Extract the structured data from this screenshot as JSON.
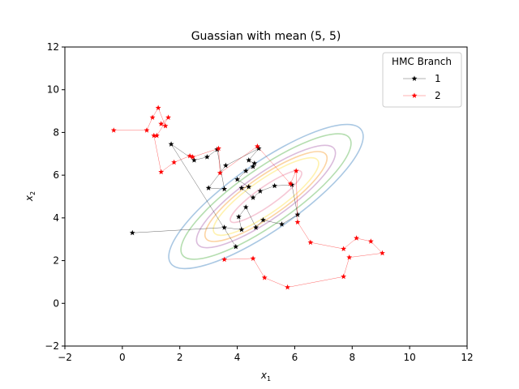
{
  "chart_data": {
    "type": "scatter",
    "title": "Guassian with mean (5, 5)",
    "xlabel_main": "x",
    "xlabel_sub": "1",
    "ylabel_main": "x",
    "ylabel_sub": "2",
    "xlim": [
      -2,
      12
    ],
    "ylim": [
      -2,
      12
    ],
    "xticks": [
      -2,
      0,
      2,
      4,
      6,
      8,
      10,
      12
    ],
    "yticks": [
      -2,
      0,
      2,
      4,
      6,
      8,
      10,
      12
    ],
    "grid": false,
    "legend": {
      "title": "HMC Branch",
      "placement": "top-right",
      "entries": [
        "1",
        "2"
      ]
    },
    "contours": {
      "mean": [
        5,
        5
      ],
      "levels": [
        {
          "color": "#aac8e3",
          "sx": 4.05,
          "sy": 1.56,
          "angle": -35
        },
        {
          "color": "#b5deb0",
          "sx": 3.55,
          "sy": 1.3,
          "angle": -35
        },
        {
          "color": "#dbbcdc",
          "sx": 2.9,
          "sy": 1.05,
          "angle": -35
        },
        {
          "color": "#fcd4a3",
          "sx": 2.55,
          "sy": 0.92,
          "angle": -35
        },
        {
          "color": "#fff2b0",
          "sx": 2.2,
          "sy": 0.78,
          "angle": -35
        },
        {
          "color": "#f6c8d6",
          "sx": 1.5,
          "sy": 0.45,
          "angle": -35
        }
      ]
    },
    "series": [
      {
        "name": "1",
        "color": "#000000",
        "points": [
          [
            0.35,
            3.3
          ],
          [
            3.55,
            3.55
          ],
          [
            4.15,
            3.45
          ],
          [
            4.05,
            4.05
          ],
          [
            4.3,
            4.5
          ],
          [
            4.65,
            3.55
          ],
          [
            4.9,
            3.9
          ],
          [
            5.55,
            3.7
          ],
          [
            6.1,
            4.15
          ],
          [
            5.9,
            5.55
          ],
          [
            5.3,
            5.5
          ],
          [
            4.8,
            5.25
          ],
          [
            4.55,
            4.95
          ],
          [
            4.15,
            5.4
          ],
          [
            4.4,
            5.45
          ],
          [
            4.0,
            5.8
          ],
          [
            4.3,
            6.2
          ],
          [
            4.55,
            6.4
          ],
          [
            4.6,
            6.55
          ],
          [
            4.4,
            6.7
          ],
          [
            4.75,
            7.25
          ],
          [
            3.6,
            6.45
          ],
          [
            3.0,
            5.4
          ],
          [
            3.55,
            5.35
          ],
          [
            3.3,
            7.2
          ],
          [
            2.95,
            6.85
          ],
          [
            2.5,
            6.7
          ],
          [
            1.7,
            7.45
          ],
          [
            3.95,
            2.65
          ]
        ]
      },
      {
        "name": "2",
        "color": "#ff0000",
        "points": [
          [
            -0.3,
            8.1
          ],
          [
            0.85,
            8.1
          ],
          [
            1.05,
            8.7
          ],
          [
            1.25,
            9.15
          ],
          [
            1.5,
            8.3
          ],
          [
            1.35,
            8.4
          ],
          [
            1.6,
            8.7
          ],
          [
            1.2,
            7.85
          ],
          [
            1.1,
            7.85
          ],
          [
            1.35,
            6.15
          ],
          [
            1.8,
            6.6
          ],
          [
            2.35,
            6.9
          ],
          [
            2.45,
            6.85
          ],
          [
            3.35,
            7.25
          ],
          [
            3.4,
            6.1
          ],
          [
            4.7,
            7.35
          ],
          [
            5.85,
            5.6
          ],
          [
            6.05,
            6.2
          ],
          [
            6.1,
            3.8
          ],
          [
            6.55,
            2.85
          ],
          [
            7.7,
            2.55
          ],
          [
            8.15,
            3.05
          ],
          [
            8.65,
            2.9
          ],
          [
            9.05,
            2.35
          ],
          [
            7.9,
            2.15
          ],
          [
            7.7,
            1.25
          ],
          [
            5.75,
            0.75
          ],
          [
            4.95,
            1.2
          ],
          [
            4.55,
            2.1
          ],
          [
            3.55,
            2.05
          ]
        ]
      }
    ]
  }
}
